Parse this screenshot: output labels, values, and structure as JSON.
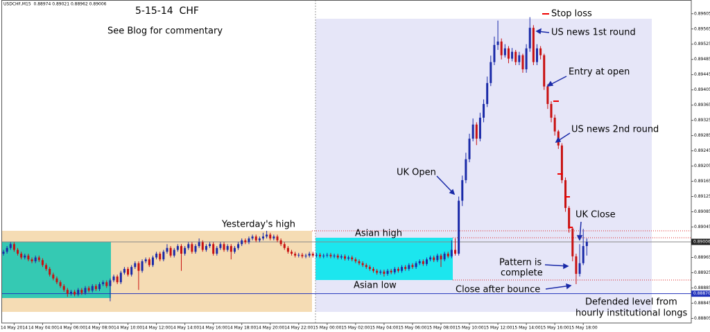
{
  "chart_data": {
    "type": "candlestick",
    "header": "USDCHF,M15  0.88974 0.89021 0.88962 0.89006",
    "title": "5-15-14  CHF",
    "subtitle": "See Blog for commentary",
    "annotations": [
      "Stop loss",
      "US news 1st round",
      "Entry at open",
      "US news 2nd round",
      "UK Open",
      "Yesterday's high",
      "Asian high",
      "Asian low",
      "UK Close",
      "Pattern is",
      "complete",
      "Close after bounce",
      "Defended level from",
      "hourly institutional longs"
    ],
    "up_color": "#1a2aa8",
    "down_color": "#c81010",
    "ylim": [
      0.88793,
      0.89641
    ],
    "yticks": [
      0.89605,
      0.89565,
      0.89525,
      0.89485,
      0.89445,
      0.89405,
      0.89365,
      0.89325,
      0.89285,
      0.89245,
      0.89205,
      0.89165,
      0.89125,
      0.89085,
      0.89045,
      0.88965,
      0.88925,
      0.88885,
      0.88845,
      0.88805
    ],
    "price_labels": [
      0.89006,
      {
        "value": 0.8887,
        "label": "0.88870"
      }
    ],
    "price_line_colors": [
      "#888888",
      "#2233bb"
    ],
    "categories": [
      null,
      null,
      null,
      "14 May 2014",
      null,
      null,
      null,
      null,
      null,
      null,
      null,
      "14 May 04:00",
      null,
      null,
      null,
      null,
      null,
      null,
      null,
      "14 May 06:00",
      null,
      null,
      null,
      null,
      null,
      null,
      null,
      "14 May 08:00",
      null,
      null,
      null,
      null,
      null,
      null,
      null,
      "14 May 10:00",
      null,
      null,
      null,
      null,
      null,
      null,
      null,
      "14 May 12:00",
      null,
      null,
      null,
      null,
      null,
      null,
      null,
      "14 May 14:00",
      null,
      null,
      null,
      null,
      null,
      null,
      null,
      "14 May 16:00",
      null,
      null,
      null,
      null,
      null,
      null,
      null,
      "14 May 18:00",
      null,
      null,
      null,
      null,
      null,
      null,
      null,
      "14 May 20:00",
      null,
      null,
      null,
      null,
      null,
      null,
      null,
      "14 May 22:00",
      null,
      null,
      null,
      null,
      null,
      null,
      null,
      "15 May 00:00",
      null,
      null,
      null,
      null,
      null,
      null,
      null,
      "15 May 02:00",
      null,
      null,
      null,
      null,
      null,
      null,
      null,
      "15 May 04:00",
      null,
      null,
      null,
      null,
      null,
      null,
      null,
      "15 May 06:00",
      null,
      null,
      null,
      null,
      null,
      null,
      null,
      "15 May 08:00",
      null,
      null,
      null,
      null,
      null,
      null,
      null,
      "15 May 10:00",
      null,
      null,
      null,
      null,
      null,
      null,
      null,
      "15 May 12:00",
      null,
      null,
      null,
      null,
      null,
      null,
      null,
      "15 May 14:00",
      null,
      null,
      null,
      null,
      null,
      null,
      null,
      "15 May 16:00",
      null,
      null,
      null,
      null,
      null,
      null,
      null,
      "15 May 18:00",
      null
    ],
    "ohlc": [
      [
        0.88975,
        0.88985,
        0.8897,
        0.8898
      ],
      [
        0.8898,
        0.88995,
        0.88975,
        0.8899
      ],
      [
        0.8899,
        0.89005,
        0.88985,
        0.89
      ],
      [
        0.89,
        0.89005,
        0.8898,
        0.88985
      ],
      [
        0.88985,
        0.8899,
        0.8897,
        0.88975
      ],
      [
        0.88975,
        0.8898,
        0.8896,
        0.88965
      ],
      [
        0.88965,
        0.88975,
        0.8896,
        0.8897
      ],
      [
        0.8897,
        0.88975,
        0.88955,
        0.8896
      ],
      [
        0.8896,
        0.88965,
        0.8895,
        0.88955
      ],
      [
        0.88955,
        0.8897,
        0.8895,
        0.88965
      ],
      [
        0.88965,
        0.8897,
        0.88953,
        0.88958
      ],
      [
        0.88958,
        0.88963,
        0.8894,
        0.88945
      ],
      [
        0.88945,
        0.8895,
        0.8893,
        0.88935
      ],
      [
        0.88935,
        0.8894,
        0.88915,
        0.8892
      ],
      [
        0.8892,
        0.88925,
        0.88905,
        0.8891
      ],
      [
        0.8891,
        0.88915,
        0.88895,
        0.889
      ],
      [
        0.889,
        0.88905,
        0.88885,
        0.8889
      ],
      [
        0.8889,
        0.88895,
        0.88875,
        0.8888
      ],
      [
        0.8888,
        0.88885,
        0.88862,
        0.8887
      ],
      [
        0.8887,
        0.8888,
        0.88865,
        0.88875
      ],
      [
        0.88875,
        0.8888,
        0.88863,
        0.88868
      ],
      [
        0.88868,
        0.88885,
        0.88863,
        0.8888
      ],
      [
        0.8888,
        0.88885,
        0.88867,
        0.88872
      ],
      [
        0.88872,
        0.8889,
        0.88867,
        0.88885
      ],
      [
        0.88885,
        0.8889,
        0.88873,
        0.88878
      ],
      [
        0.88878,
        0.88895,
        0.88873,
        0.8889
      ],
      [
        0.8889,
        0.88895,
        0.88877,
        0.88882
      ],
      [
        0.88882,
        0.889,
        0.88877,
        0.88895
      ],
      [
        0.88895,
        0.88905,
        0.8889,
        0.889
      ],
      [
        0.889,
        0.88905,
        0.88885,
        0.8889
      ],
      [
        0.8889,
        0.8891,
        0.8885,
        0.88905
      ],
      [
        0.88905,
        0.8892,
        0.889,
        0.88915
      ],
      [
        0.88915,
        0.8892,
        0.88895,
        0.889
      ],
      [
        0.889,
        0.8893,
        0.88895,
        0.88925
      ],
      [
        0.88925,
        0.8894,
        0.8892,
        0.88935
      ],
      [
        0.88935,
        0.8894,
        0.88915,
        0.8892
      ],
      [
        0.8892,
        0.88945,
        0.88915,
        0.8894
      ],
      [
        0.8894,
        0.88955,
        0.88935,
        0.8895
      ],
      [
        0.8895,
        0.88955,
        0.8888,
        0.8893
      ],
      [
        0.8893,
        0.8896,
        0.88925,
        0.88955
      ],
      [
        0.88955,
        0.88965,
        0.8895,
        0.8896
      ],
      [
        0.8896,
        0.88965,
        0.8894,
        0.88945
      ],
      [
        0.88945,
        0.8897,
        0.8894,
        0.88965
      ],
      [
        0.88965,
        0.8898,
        0.8896,
        0.88975
      ],
      [
        0.88975,
        0.8898,
        0.88955,
        0.8896
      ],
      [
        0.8896,
        0.88985,
        0.88955,
        0.8898
      ],
      [
        0.8898,
        0.89,
        0.88975,
        0.8899
      ],
      [
        0.8899,
        0.88995,
        0.88965,
        0.8897
      ],
      [
        0.8897,
        0.8899,
        0.88965,
        0.88985
      ],
      [
        0.88985,
        0.89,
        0.8898,
        0.88995
      ],
      [
        0.88995,
        0.89,
        0.8893,
        0.88975
      ],
      [
        0.88975,
        0.88995,
        0.8897,
        0.8899
      ],
      [
        0.8899,
        0.89005,
        0.88985,
        0.89
      ],
      [
        0.89,
        0.89005,
        0.88975,
        0.8898
      ],
      [
        0.8898,
        0.89,
        0.88975,
        0.88995
      ],
      [
        0.88995,
        0.89015,
        0.8899,
        0.89005
      ],
      [
        0.89005,
        0.8901,
        0.8898,
        0.88985
      ],
      [
        0.88985,
        0.89,
        0.8898,
        0.88995
      ],
      [
        0.88995,
        0.89005,
        0.8899,
        0.89
      ],
      [
        0.89,
        0.89005,
        0.8897,
        0.88975
      ],
      [
        0.88975,
        0.88995,
        0.8897,
        0.8899
      ],
      [
        0.8899,
        0.89005,
        0.88985,
        0.89
      ],
      [
        0.89,
        0.89005,
        0.8898,
        0.88985
      ],
      [
        0.88985,
        0.89,
        0.8898,
        0.88995
      ],
      [
        0.88995,
        0.89,
        0.8896,
        0.8898
      ],
      [
        0.8898,
        0.88995,
        0.88975,
        0.8899
      ],
      [
        0.8899,
        0.89005,
        0.88985,
        0.89
      ],
      [
        0.89,
        0.89015,
        0.88995,
        0.8901
      ],
      [
        0.8901,
        0.89015,
        0.89,
        0.89005
      ],
      [
        0.89005,
        0.8902,
        0.89,
        0.89015
      ],
      [
        0.89015,
        0.89025,
        0.8901,
        0.8902
      ],
      [
        0.8902,
        0.89025,
        0.89005,
        0.8901
      ],
      [
        0.8901,
        0.8902,
        0.89005,
        0.89015
      ],
      [
        0.89015,
        0.8903,
        0.8901,
        0.8902
      ],
      [
        0.8902,
        0.89035,
        0.89015,
        0.89025
      ],
      [
        0.89025,
        0.8903,
        0.8901,
        0.89015
      ],
      [
        0.89015,
        0.89025,
        0.8901,
        0.8902
      ],
      [
        0.8902,
        0.89025,
        0.89005,
        0.8901
      ],
      [
        0.8901,
        0.89015,
        0.88995,
        0.89
      ],
      [
        0.89,
        0.89005,
        0.88985,
        0.8899
      ],
      [
        0.8899,
        0.88995,
        0.88975,
        0.8898
      ],
      [
        0.8898,
        0.88985,
        0.8897,
        0.88975
      ],
      [
        0.88975,
        0.8898,
        0.88965,
        0.8897
      ],
      [
        0.8897,
        0.88977,
        0.88965,
        0.88972
      ],
      [
        0.88972,
        0.88977,
        0.88963,
        0.88968
      ],
      [
        0.88968,
        0.88975,
        0.88963,
        0.8897
      ],
      [
        0.8897,
        0.8898,
        0.88965,
        0.88975
      ],
      [
        0.88975,
        0.8898,
        0.88965,
        0.8897
      ],
      [
        0.8897,
        0.88977,
        0.88965,
        0.88972
      ],
      [
        0.88972,
        0.88977,
        0.88963,
        0.88968
      ],
      [
        0.88968,
        0.88975,
        0.88963,
        0.8897
      ],
      [
        0.8897,
        0.88977,
        0.88965,
        0.88972
      ],
      [
        0.88972,
        0.88977,
        0.88963,
        0.88968
      ],
      [
        0.88968,
        0.88975,
        0.88963,
        0.8897
      ],
      [
        0.8897,
        0.88975,
        0.8896,
        0.88965
      ],
      [
        0.88965,
        0.88973,
        0.8896,
        0.88968
      ],
      [
        0.88968,
        0.88973,
        0.88957,
        0.88962
      ],
      [
        0.88962,
        0.8897,
        0.88957,
        0.88965
      ],
      [
        0.88965,
        0.8897,
        0.88955,
        0.8896
      ],
      [
        0.8896,
        0.88965,
        0.8895,
        0.88955
      ],
      [
        0.88955,
        0.8896,
        0.88945,
        0.8895
      ],
      [
        0.8895,
        0.88955,
        0.8894,
        0.88945
      ],
      [
        0.88945,
        0.8895,
        0.88935,
        0.8894
      ],
      [
        0.8894,
        0.88945,
        0.8893,
        0.88935
      ],
      [
        0.88935,
        0.8894,
        0.88925,
        0.8893
      ],
      [
        0.8893,
        0.88935,
        0.8892,
        0.88925
      ],
      [
        0.88925,
        0.88933,
        0.8892,
        0.88928
      ],
      [
        0.88928,
        0.88933,
        0.88915,
        0.88922
      ],
      [
        0.88922,
        0.88935,
        0.88917,
        0.8893
      ],
      [
        0.8893,
        0.88935,
        0.88921,
        0.88926
      ],
      [
        0.88926,
        0.8894,
        0.88921,
        0.88935
      ],
      [
        0.88935,
        0.8894,
        0.88925,
        0.8893
      ],
      [
        0.8893,
        0.88945,
        0.88925,
        0.8894
      ],
      [
        0.8894,
        0.88945,
        0.8893,
        0.88935
      ],
      [
        0.88935,
        0.8895,
        0.8893,
        0.88945
      ],
      [
        0.88945,
        0.8895,
        0.88935,
        0.8894
      ],
      [
        0.8894,
        0.88955,
        0.88935,
        0.8895
      ],
      [
        0.8895,
        0.8896,
        0.88945,
        0.88955
      ],
      [
        0.88955,
        0.8896,
        0.88943,
        0.88948
      ],
      [
        0.88948,
        0.88965,
        0.88943,
        0.8896
      ],
      [
        0.8896,
        0.8897,
        0.88955,
        0.88965
      ],
      [
        0.88965,
        0.8897,
        0.88953,
        0.88958
      ],
      [
        0.88958,
        0.88975,
        0.88953,
        0.8897
      ],
      [
        0.8897,
        0.88975,
        0.8894,
        0.8896
      ],
      [
        0.8896,
        0.8898,
        0.88955,
        0.88975
      ],
      [
        0.88975,
        0.8898,
        0.88963,
        0.88968
      ],
      [
        0.88968,
        0.8901,
        0.88963,
        0.88985
      ],
      [
        0.88985,
        0.89015,
        0.8897,
        0.88975
      ],
      [
        0.88975,
        0.89125,
        0.8897,
        0.89114
      ],
      [
        0.89114,
        0.8918,
        0.891,
        0.89168
      ],
      [
        0.89168,
        0.8924,
        0.8916,
        0.89223
      ],
      [
        0.89223,
        0.8929,
        0.89215,
        0.89277
      ],
      [
        0.89277,
        0.8933,
        0.8927,
        0.89314
      ],
      [
        0.89314,
        0.8932,
        0.8926,
        0.89277
      ],
      [
        0.89277,
        0.89345,
        0.8927,
        0.89332
      ],
      [
        0.89332,
        0.8938,
        0.8932,
        0.89368
      ],
      [
        0.89368,
        0.8944,
        0.8936,
        0.89423
      ],
      [
        0.89423,
        0.89495,
        0.89415,
        0.89478
      ],
      [
        0.89478,
        0.89545,
        0.8947,
        0.89523
      ],
      [
        0.89523,
        0.89587,
        0.8951,
        0.89532
      ],
      [
        0.89532,
        0.8954,
        0.89485,
        0.89496
      ],
      [
        0.89496,
        0.89525,
        0.8949,
        0.89514
      ],
      [
        0.89514,
        0.8952,
        0.89475,
        0.89487
      ],
      [
        0.89487,
        0.89515,
        0.8948,
        0.89505
      ],
      [
        0.89505,
        0.8951,
        0.8947,
        0.89478
      ],
      [
        0.89478,
        0.89505,
        0.8947,
        0.89496
      ],
      [
        0.89496,
        0.895,
        0.8945,
        0.89459
      ],
      [
        0.89459,
        0.89525,
        0.8945,
        0.89514
      ],
      [
        0.89514,
        0.89596,
        0.89505,
        0.89568
      ],
      [
        0.89568,
        0.89575,
        0.8947,
        0.89478
      ],
      [
        0.89478,
        0.89525,
        0.8947,
        0.89514
      ],
      [
        0.89514,
        0.8952,
        0.89485,
        0.89496
      ],
      [
        0.89496,
        0.895,
        0.89405,
        0.89414
      ],
      [
        0.89414,
        0.8942,
        0.89355,
        0.89368
      ],
      [
        0.89368,
        0.89375,
        0.8932,
        0.89332
      ],
      [
        0.89332,
        0.8934,
        0.89285,
        0.89296
      ],
      [
        0.89296,
        0.893,
        0.8925,
        0.89259
      ],
      [
        0.89259,
        0.89265,
        0.8916,
        0.89168
      ],
      [
        0.89168,
        0.89175,
        0.89085,
        0.89095
      ],
      [
        0.89095,
        0.891,
        0.8903,
        0.89041
      ],
      [
        0.89041,
        0.89045,
        0.88955,
        0.88968
      ],
      [
        0.88968,
        0.88975,
        0.88895,
        0.88922
      ],
      [
        0.88922,
        0.89,
        0.88915,
        0.8895
      ],
      [
        0.8895,
        0.8904,
        0.88945,
        0.88995
      ],
      [
        0.88995,
        0.89015,
        0.8897,
        0.89006
      ]
    ]
  }
}
